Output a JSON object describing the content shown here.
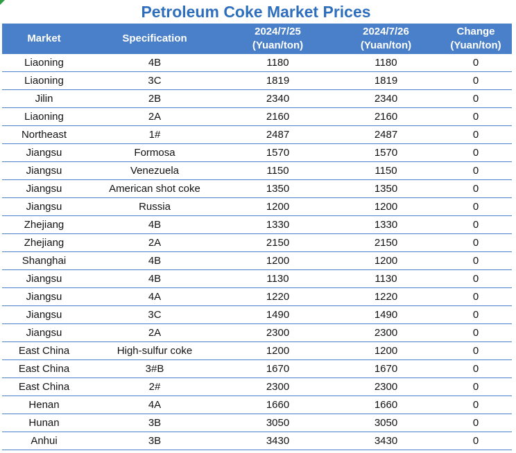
{
  "chart_data": {
    "type": "table",
    "title": "Petroleum Coke Market Prices",
    "headers": [
      {
        "line1": "Market",
        "line2": ""
      },
      {
        "line1": "Specification",
        "line2": ""
      },
      {
        "line1": "2024/7/25",
        "line2": "(Yuan/ton)"
      },
      {
        "line1": "2024/7/26",
        "line2": "(Yuan/ton)"
      },
      {
        "line1": "Change",
        "line2": "(Yuan/ton)"
      }
    ],
    "rows": [
      [
        "Liaoning",
        "4B",
        "1180",
        "1180",
        "0"
      ],
      [
        "Liaoning",
        "3C",
        "1819",
        "1819",
        "0"
      ],
      [
        "Jilin",
        "2B",
        "2340",
        "2340",
        "0"
      ],
      [
        "Liaoning",
        "2A",
        "2160",
        "2160",
        "0"
      ],
      [
        "Northeast",
        "1#",
        "2487",
        "2487",
        "0"
      ],
      [
        "Jiangsu",
        "Formosa",
        "1570",
        "1570",
        "0"
      ],
      [
        "Jiangsu",
        "Venezuela",
        "1150",
        "1150",
        "0"
      ],
      [
        "Jiangsu",
        "American shot coke",
        "1350",
        "1350",
        "0"
      ],
      [
        "Jiangsu",
        "Russia",
        "1200",
        "1200",
        "0"
      ],
      [
        "Zhejiang",
        "4B",
        "1330",
        "1330",
        "0"
      ],
      [
        "Zhejiang",
        "2A",
        "2150",
        "2150",
        "0"
      ],
      [
        "Shanghai",
        "4B",
        "1200",
        "1200",
        "0"
      ],
      [
        "Jiangsu",
        "4B",
        "1130",
        "1130",
        "0"
      ],
      [
        "Jiangsu",
        "4A",
        "1220",
        "1220",
        "0"
      ],
      [
        "Jiangsu",
        "3C",
        "1490",
        "1490",
        "0"
      ],
      [
        "Jiangsu",
        "2A",
        "2300",
        "2300",
        "0"
      ],
      [
        "East China",
        "High-sulfur coke",
        "1200",
        "1200",
        "0"
      ],
      [
        "East China",
        "3#B",
        "1670",
        "1670",
        "0"
      ],
      [
        "East China",
        "2#",
        "2300",
        "2300",
        "0"
      ],
      [
        "Henan",
        "4A",
        "1660",
        "1660",
        "0"
      ],
      [
        "Hunan",
        "3B",
        "3050",
        "3050",
        "0"
      ],
      [
        "Anhui",
        "3B",
        "3430",
        "3430",
        "0"
      ]
    ]
  },
  "colors": {
    "title": "#2e6fbd",
    "header_bg": "#4a80c9",
    "header_text": "#ffffff",
    "row_border": "#4a80c9",
    "corner_mark": "#2e9e44"
  }
}
